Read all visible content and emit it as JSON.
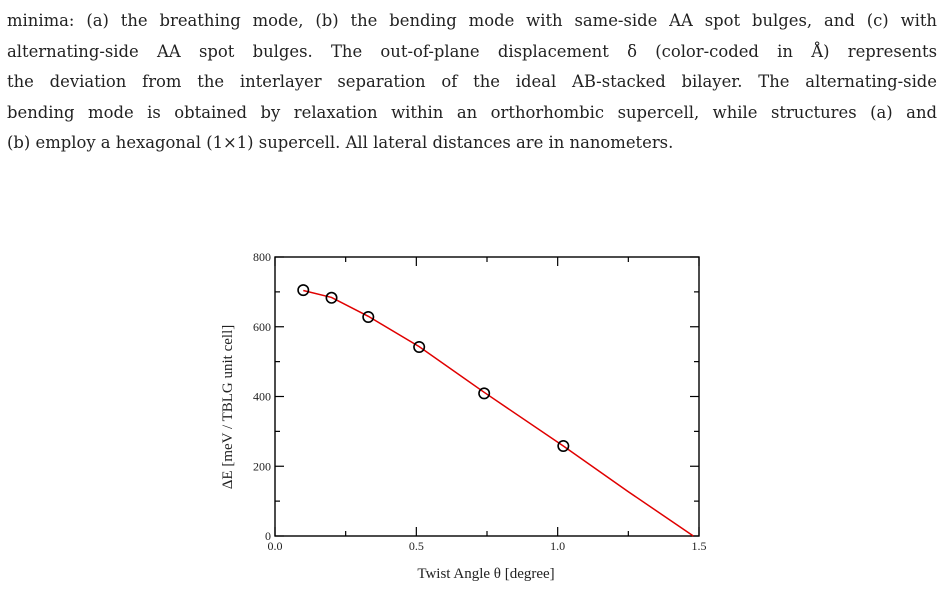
{
  "caption": {
    "lines": [
      "minima: (a) the breathing mode, (b) the bending mode with same-side AA spot bulges, and (c) with",
      "alternating-side AA spot bulges. The out-of-plane displacement δ (color-coded in Å) represents",
      "the deviation from the interlayer separation of the ideal AB-stacked bilayer. The alternating-side",
      "bending mode is obtained by relaxation within an orthorhombic supercell, while structures (a) and",
      "(b) employ a hexagonal (1×1) supercell. All lateral distances are in nanometers."
    ]
  },
  "chart_data": {
    "type": "scatter",
    "xlabel": "Twist Angle θ  [degree]",
    "ylabel": "ΔE  [meV / TBLG unit cell]",
    "xlim": [
      0.0,
      1.5
    ],
    "ylim": [
      0,
      800
    ],
    "x_ticks": [
      "0.0",
      "0.5",
      "1.0",
      "1.5"
    ],
    "y_ticks": [
      "0",
      "200",
      "400",
      "600",
      "800"
    ],
    "grid": false,
    "series": [
      {
        "kind": "markers",
        "marker": "open-circle",
        "color": "#000000",
        "points": [
          {
            "x": 0.1,
            "y": 705
          },
          {
            "x": 0.2,
            "y": 683
          },
          {
            "x": 0.33,
            "y": 628
          },
          {
            "x": 0.51,
            "y": 542
          },
          {
            "x": 0.74,
            "y": 409
          },
          {
            "x": 1.02,
            "y": 258
          }
        ]
      },
      {
        "kind": "line",
        "color": "#e00000",
        "points": [
          {
            "x": 0.1,
            "y": 704
          },
          {
            "x": 0.2,
            "y": 684
          },
          {
            "x": 0.33,
            "y": 630
          },
          {
            "x": 0.51,
            "y": 543
          },
          {
            "x": 0.74,
            "y": 412
          },
          {
            "x": 1.02,
            "y": 258
          },
          {
            "x": 1.25,
            "y": 127
          },
          {
            "x": 1.48,
            "y": 0
          }
        ]
      }
    ]
  }
}
